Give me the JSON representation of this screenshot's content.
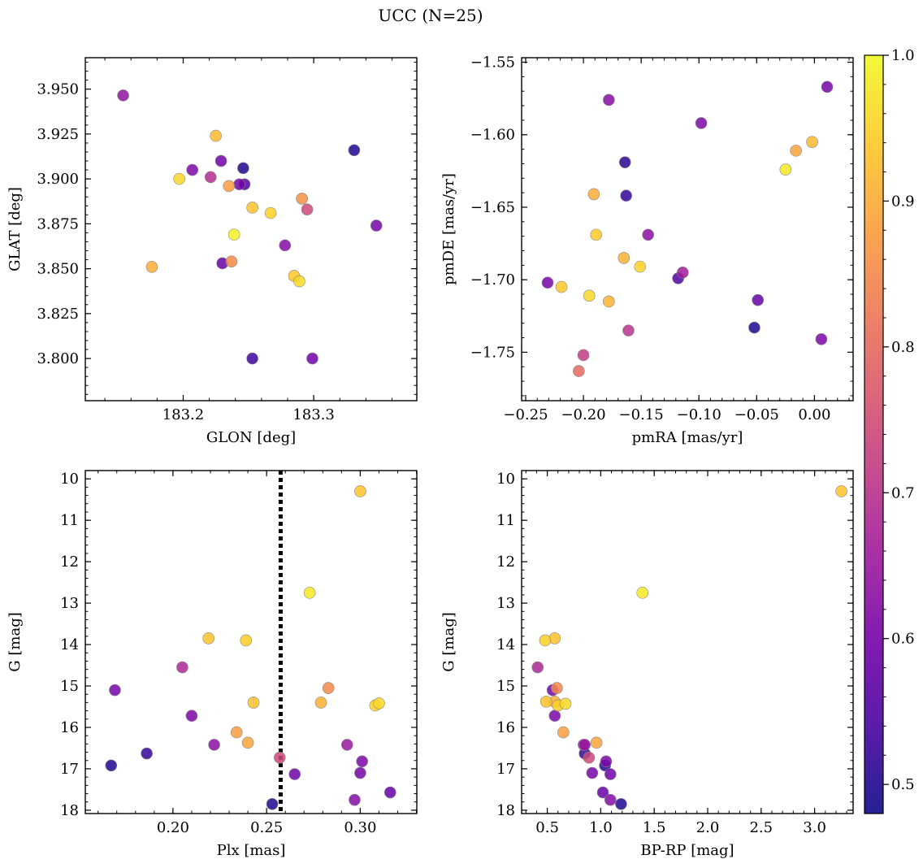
{
  "figure": {
    "title": "UCC (N=25)"
  },
  "colorbar": {
    "min": 0.48,
    "max": 1.0,
    "ticks": [
      "0.5",
      "0.6",
      "0.7",
      "0.8",
      "0.9",
      "1.0"
    ],
    "tick_values": [
      0.5,
      0.6,
      0.7,
      0.8,
      0.9,
      1.0
    ],
    "colormap": "plasma",
    "colors": [
      "#0d0887",
      "#46039f",
      "#7201a8",
      "#9c179e",
      "#bd3786",
      "#d8576b",
      "#ed7953",
      "#fb9f3a",
      "#fdca26",
      "#f0f921"
    ]
  },
  "chart_data": [
    {
      "type": "scatter",
      "xlabel": "GLON [deg]",
      "ylabel": "GLAT [deg]",
      "xlim": [
        183.125,
        183.379
      ],
      "ylim": [
        3.7765,
        3.9675
      ],
      "xticks": [
        183.2,
        183.3
      ],
      "xtick_labels": [
        "183.2",
        "183.3"
      ],
      "yticks": [
        3.8,
        3.825,
        3.85,
        3.875,
        3.9,
        3.925,
        3.95
      ],
      "ytick_labels": [
        "3.800",
        "3.825",
        "3.850",
        "3.875",
        "3.900",
        "3.925",
        "3.950"
      ],
      "points": [
        {
          "x": 183.154,
          "y": 3.9465,
          "c": 0.64
        },
        {
          "x": 183.225,
          "y": 3.924,
          "c": 0.92
        },
        {
          "x": 183.229,
          "y": 3.91,
          "c": 0.59
        },
        {
          "x": 183.207,
          "y": 3.905,
          "c": 0.61
        },
        {
          "x": 183.197,
          "y": 3.9,
          "c": 0.96
        },
        {
          "x": 183.221,
          "y": 3.901,
          "c": 0.69
        },
        {
          "x": 183.235,
          "y": 3.896,
          "c": 0.88
        },
        {
          "x": 183.243,
          "y": 3.897,
          "c": 0.6
        },
        {
          "x": 183.246,
          "y": 3.906,
          "c": 0.5
        },
        {
          "x": 183.247,
          "y": 3.897,
          "c": 0.55
        },
        {
          "x": 183.253,
          "y": 3.884,
          "c": 0.93
        },
        {
          "x": 183.267,
          "y": 3.881,
          "c": 0.95
        },
        {
          "x": 183.291,
          "y": 3.889,
          "c": 0.86
        },
        {
          "x": 183.295,
          "y": 3.883,
          "c": 0.74
        },
        {
          "x": 183.239,
          "y": 3.869,
          "c": 0.99
        },
        {
          "x": 183.278,
          "y": 3.863,
          "c": 0.62
        },
        {
          "x": 183.176,
          "y": 3.851,
          "c": 0.9
        },
        {
          "x": 183.23,
          "y": 3.853,
          "c": 0.58
        },
        {
          "x": 183.237,
          "y": 3.854,
          "c": 0.85
        },
        {
          "x": 183.285,
          "y": 3.846,
          "c": 0.94
        },
        {
          "x": 183.289,
          "y": 3.843,
          "c": 0.96
        },
        {
          "x": 183.331,
          "y": 3.916,
          "c": 0.5
        },
        {
          "x": 183.348,
          "y": 3.874,
          "c": 0.6
        },
        {
          "x": 183.253,
          "y": 3.8,
          "c": 0.53
        },
        {
          "x": 183.299,
          "y": 3.8,
          "c": 0.59
        }
      ]
    },
    {
      "type": "scatter",
      "xlabel": "pmRA [mas/yr]",
      "ylabel": "pmDE [mas/yr]",
      "xlim": [
        -0.2535,
        0.0335
      ],
      "ylim": [
        -1.7834,
        -1.5469
      ],
      "xticks": [
        -0.25,
        -0.2,
        -0.15,
        -0.1,
        -0.05,
        0.0
      ],
      "xtick_labels": [
        "−0.25",
        "−0.20",
        "−0.15",
        "−0.10",
        "−0.05",
        "0.00"
      ],
      "yticks": [
        -1.75,
        -1.7,
        -1.65,
        -1.6,
        -1.55
      ],
      "ytick_labels": [
        "−1.75",
        "−1.70",
        "−1.65",
        "−1.60",
        "−1.55"
      ],
      "points": [
        {
          "x": 0.011,
          "y": -1.567,
          "c": 0.6
        },
        {
          "x": -0.178,
          "y": -1.576,
          "c": 0.62
        },
        {
          "x": -0.098,
          "y": -1.592,
          "c": 0.61
        },
        {
          "x": -0.164,
          "y": -1.619,
          "c": 0.51
        },
        {
          "x": -0.163,
          "y": -1.642,
          "c": 0.52
        },
        {
          "x": -0.002,
          "y": -1.605,
          "c": 0.92
        },
        {
          "x": -0.016,
          "y": -1.611,
          "c": 0.89
        },
        {
          "x": -0.025,
          "y": -1.624,
          "c": 0.98
        },
        {
          "x": -0.191,
          "y": -1.641,
          "c": 0.9
        },
        {
          "x": -0.189,
          "y": -1.669,
          "c": 0.94
        },
        {
          "x": -0.144,
          "y": -1.669,
          "c": 0.63
        },
        {
          "x": -0.165,
          "y": -1.685,
          "c": 0.91
        },
        {
          "x": -0.151,
          "y": -1.691,
          "c": 0.95
        },
        {
          "x": -0.114,
          "y": -1.695,
          "c": 0.66
        },
        {
          "x": -0.118,
          "y": -1.699,
          "c": 0.55
        },
        {
          "x": -0.231,
          "y": -1.702,
          "c": 0.6
        },
        {
          "x": -0.219,
          "y": -1.705,
          "c": 0.94
        },
        {
          "x": -0.195,
          "y": -1.711,
          "c": 0.96
        },
        {
          "x": -0.178,
          "y": -1.715,
          "c": 0.91
        },
        {
          "x": -0.049,
          "y": -1.714,
          "c": 0.58
        },
        {
          "x": -0.052,
          "y": -1.733,
          "c": 0.5
        },
        {
          "x": -0.161,
          "y": -1.735,
          "c": 0.7
        },
        {
          "x": 0.006,
          "y": -1.741,
          "c": 0.61
        },
        {
          "x": -0.2,
          "y": -1.752,
          "c": 0.72
        },
        {
          "x": -0.204,
          "y": -1.763,
          "c": 0.8
        }
      ]
    },
    {
      "type": "scatter",
      "xlabel": "Plx [mas]",
      "ylabel": "G [mag]",
      "xlim": [
        0.1532,
        0.3302
      ],
      "ylim": [
        18.08,
        9.8
      ],
      "y_inverted": true,
      "xticks": [
        0.2,
        0.25,
        0.3
      ],
      "xtick_labels": [
        "0.20",
        "0.25",
        "0.30"
      ],
      "yticks": [
        10,
        11,
        12,
        13,
        14,
        15,
        16,
        17,
        18
      ],
      "ytick_labels": [
        "10",
        "11",
        "12",
        "13",
        "14",
        "15",
        "16",
        "17",
        "18"
      ],
      "vline": {
        "x": 0.2575,
        "style": "dotted",
        "color": "#000000"
      },
      "points": [
        {
          "x": 0.3,
          "y": 10.3,
          "c": 0.93
        },
        {
          "x": 0.273,
          "y": 12.75,
          "c": 0.98
        },
        {
          "x": 0.219,
          "y": 13.85,
          "c": 0.93
        },
        {
          "x": 0.239,
          "y": 13.9,
          "c": 0.95
        },
        {
          "x": 0.205,
          "y": 14.55,
          "c": 0.68
        },
        {
          "x": 0.169,
          "y": 15.1,
          "c": 0.6
        },
        {
          "x": 0.283,
          "y": 15.05,
          "c": 0.85
        },
        {
          "x": 0.243,
          "y": 15.4,
          "c": 0.93
        },
        {
          "x": 0.279,
          "y": 15.4,
          "c": 0.91
        },
        {
          "x": 0.308,
          "y": 15.47,
          "c": 0.95
        },
        {
          "x": 0.31,
          "y": 15.42,
          "c": 0.96
        },
        {
          "x": 0.21,
          "y": 15.72,
          "c": 0.61
        },
        {
          "x": 0.234,
          "y": 16.12,
          "c": 0.88
        },
        {
          "x": 0.24,
          "y": 16.37,
          "c": 0.89
        },
        {
          "x": 0.222,
          "y": 16.42,
          "c": 0.63
        },
        {
          "x": 0.293,
          "y": 16.42,
          "c": 0.65
        },
        {
          "x": 0.186,
          "y": 16.63,
          "c": 0.52
        },
        {
          "x": 0.257,
          "y": 16.73,
          "c": 0.74
        },
        {
          "x": 0.301,
          "y": 16.82,
          "c": 0.61
        },
        {
          "x": 0.167,
          "y": 16.92,
          "c": 0.5
        },
        {
          "x": 0.3,
          "y": 17.1,
          "c": 0.6
        },
        {
          "x": 0.265,
          "y": 17.13,
          "c": 0.59
        },
        {
          "x": 0.316,
          "y": 17.57,
          "c": 0.58
        },
        {
          "x": 0.297,
          "y": 17.75,
          "c": 0.62
        },
        {
          "x": 0.253,
          "y": 17.85,
          "c": 0.5
        }
      ]
    },
    {
      "type": "scatter",
      "xlabel": "BP-RP [mag]",
      "ylabel": "G [mag]",
      "xlim": [
        0.26,
        3.36
      ],
      "ylim": [
        18.08,
        9.8
      ],
      "y_inverted": true,
      "xticks": [
        0.5,
        1.0,
        1.5,
        2.0,
        2.5,
        3.0
      ],
      "xtick_labels": [
        "0.5",
        "1.0",
        "1.5",
        "2.0",
        "2.5",
        "3.0"
      ],
      "yticks": [
        10,
        11,
        12,
        13,
        14,
        15,
        16,
        17,
        18
      ],
      "ytick_labels": [
        "10",
        "11",
        "12",
        "13",
        "14",
        "15",
        "16",
        "17",
        "18"
      ],
      "points": [
        {
          "x": 3.25,
          "y": 10.3,
          "c": 0.93
        },
        {
          "x": 1.39,
          "y": 12.75,
          "c": 0.98
        },
        {
          "x": 0.57,
          "y": 13.85,
          "c": 0.93
        },
        {
          "x": 0.48,
          "y": 13.9,
          "c": 0.95
        },
        {
          "x": 0.41,
          "y": 14.55,
          "c": 0.68
        },
        {
          "x": 0.55,
          "y": 15.1,
          "c": 0.6
        },
        {
          "x": 0.59,
          "y": 15.05,
          "c": 0.85
        },
        {
          "x": 0.49,
          "y": 15.38,
          "c": 0.93
        },
        {
          "x": 0.57,
          "y": 15.38,
          "c": 0.91
        },
        {
          "x": 0.6,
          "y": 15.47,
          "c": 0.95
        },
        {
          "x": 0.67,
          "y": 15.43,
          "c": 0.96
        },
        {
          "x": 0.57,
          "y": 15.72,
          "c": 0.61
        },
        {
          "x": 0.65,
          "y": 16.12,
          "c": 0.88
        },
        {
          "x": 0.96,
          "y": 16.37,
          "c": 0.89
        },
        {
          "x": 0.84,
          "y": 16.42,
          "c": 0.63
        },
        {
          "x": 0.85,
          "y": 16.42,
          "c": 0.65
        },
        {
          "x": 0.85,
          "y": 16.63,
          "c": 0.52
        },
        {
          "x": 0.89,
          "y": 16.73,
          "c": 0.74
        },
        {
          "x": 1.05,
          "y": 16.82,
          "c": 0.61
        },
        {
          "x": 1.04,
          "y": 16.92,
          "c": 0.5
        },
        {
          "x": 0.92,
          "y": 17.1,
          "c": 0.6
        },
        {
          "x": 1.09,
          "y": 17.13,
          "c": 0.59
        },
        {
          "x": 1.02,
          "y": 17.57,
          "c": 0.58
        },
        {
          "x": 1.09,
          "y": 17.75,
          "c": 0.62
        },
        {
          "x": 1.19,
          "y": 17.85,
          "c": 0.5
        }
      ]
    }
  ]
}
